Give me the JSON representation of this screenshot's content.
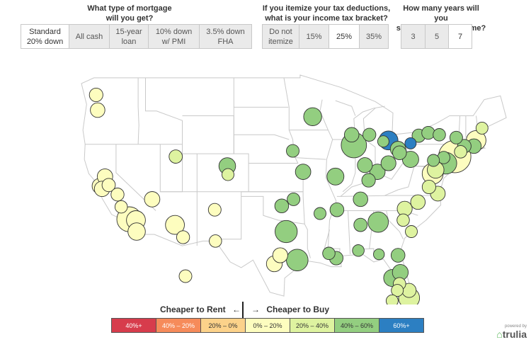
{
  "questions": {
    "mortgage": {
      "line1": "What type of mortgage",
      "line2": "will you get?",
      "options": [
        {
          "line1": "Standard",
          "line2": "20% down",
          "selected": true
        },
        {
          "line1": "All cash",
          "line2": "",
          "selected": false
        },
        {
          "line1": "15-year",
          "line2": "loan",
          "selected": false
        },
        {
          "line1": "10% down",
          "line2": "w/ PMI",
          "selected": false
        },
        {
          "line1": "3.5% down",
          "line2": "FHA",
          "selected": false
        }
      ]
    },
    "tax": {
      "line1": "If you itemize your tax deductions,",
      "line2": "what is your income tax bracket?",
      "options": [
        {
          "line1": "Do not",
          "line2": "itemize",
          "selected": false
        },
        {
          "line1": "15%",
          "line2": "",
          "selected": false
        },
        {
          "line1": "25%",
          "line2": "",
          "selected": true
        },
        {
          "line1": "35%",
          "line2": "",
          "selected": false
        }
      ]
    },
    "years": {
      "line1": "How many years will you",
      "line2": "stay in your next home?",
      "options": [
        {
          "line1": "3",
          "line2": "",
          "selected": false
        },
        {
          "line1": "5",
          "line2": "",
          "selected": false
        },
        {
          "line1": "7",
          "line2": "",
          "selected": true
        }
      ]
    }
  },
  "legend": {
    "left_label": "Cheaper to Rent",
    "left_arrow": "←",
    "right_arrow": "→",
    "right_label": "Cheaper to Buy",
    "categories": [
      {
        "label": "40%+",
        "color": "#d73c4c",
        "text_color": "#ffffff"
      },
      {
        "label": "40% – 20%",
        "color": "#f68b5a",
        "text_color": "#ffffff"
      },
      {
        "label": "20% – 0%",
        "color": "#fcd28a",
        "text_color": "#333333"
      },
      {
        "label": "0% – 20%",
        "color": "#fdfdbf",
        "text_color": "#333333"
      },
      {
        "label": "20% – 40%",
        "color": "#def3a0",
        "text_color": "#333333"
      },
      {
        "label": "40% – 60%",
        "color": "#93ce80",
        "text_color": "#333333"
      },
      {
        "label": "60%+",
        "color": "#2c7fc2",
        "text_color": "#ffffff"
      }
    ]
  },
  "brand": {
    "powered": "powered by",
    "name": "trulia"
  },
  "markers": [
    {
      "lon": -122.7,
      "lat": 47.2,
      "pop": 1.2,
      "cat": 3
    },
    {
      "lon": -122.5,
      "lat": 45.6,
      "pop": 1.6,
      "cat": 3
    },
    {
      "lon": -122.2,
      "lat": 37.6,
      "pop": 2.0,
      "cat": 3
    },
    {
      "lon": -121.5,
      "lat": 38.6,
      "pop": 2.0,
      "cat": 3
    },
    {
      "lon": -121.0,
      "lat": 37.7,
      "pop": 1.1,
      "cat": 3
    },
    {
      "lon": -121.9,
      "lat": 37.3,
      "pop": 2.0,
      "cat": 3
    },
    {
      "lon": -119.8,
      "lat": 36.7,
      "pop": 1.0,
      "cat": 3
    },
    {
      "lon": -118.2,
      "lat": 34.1,
      "pop": 9.0,
      "cat": 3
    },
    {
      "lon": -117.3,
      "lat": 34.0,
      "pop": 4.0,
      "cat": 3
    },
    {
      "lon": -117.2,
      "lat": 32.8,
      "pop": 3.0,
      "cat": 3
    },
    {
      "lon": -119.3,
      "lat": 35.4,
      "pop": 0.8,
      "cat": 3
    },
    {
      "lon": -115.1,
      "lat": 36.2,
      "pop": 2.0,
      "cat": 3
    },
    {
      "lon": -112.0,
      "lat": 33.5,
      "pop": 4.0,
      "cat": 3
    },
    {
      "lon": -110.9,
      "lat": 32.2,
      "pop": 1.0,
      "cat": 3
    },
    {
      "lon": -111.9,
      "lat": 40.7,
      "pop": 1.1,
      "cat": 4
    },
    {
      "lon": -104.9,
      "lat": 39.7,
      "pop": 2.6,
      "cat": 5
    },
    {
      "lon": -104.8,
      "lat": 38.8,
      "pop": 0.7,
      "cat": 4
    },
    {
      "lon": -106.6,
      "lat": 35.1,
      "pop": 0.9,
      "cat": 3
    },
    {
      "lon": -106.5,
      "lat": 31.8,
      "pop": 0.8,
      "cat": 3
    },
    {
      "lon": -96.9,
      "lat": 32.8,
      "pop": 6.5,
      "cat": 5
    },
    {
      "lon": -95.4,
      "lat": 29.8,
      "pop": 6.0,
      "cat": 5
    },
    {
      "lon": -97.7,
      "lat": 30.3,
      "pop": 1.8,
      "cat": 3
    },
    {
      "lon": -98.5,
      "lat": 29.4,
      "pop": 2.2,
      "cat": 3
    },
    {
      "lon": -95.9,
      "lat": 36.2,
      "pop": 0.9,
      "cat": 5
    },
    {
      "lon": -97.5,
      "lat": 35.5,
      "pop": 1.3,
      "cat": 5
    },
    {
      "lon": -94.6,
      "lat": 39.1,
      "pop": 2.0,
      "cat": 5
    },
    {
      "lon": -96.0,
      "lat": 41.3,
      "pop": 0.9,
      "cat": 5
    },
    {
      "lon": -93.3,
      "lat": 44.9,
      "pop": 3.4,
      "cat": 5
    },
    {
      "lon": -90.2,
      "lat": 38.6,
      "pop": 2.8,
      "cat": 5
    },
    {
      "lon": -87.7,
      "lat": 41.9,
      "pop": 9.5,
      "cat": 5
    },
    {
      "lon": -88.0,
      "lat": 43.0,
      "pop": 1.6,
      "cat": 5
    },
    {
      "lon": -86.2,
      "lat": 39.8,
      "pop": 1.8,
      "cat": 5
    },
    {
      "lon": -85.7,
      "lat": 38.2,
      "pop": 1.2,
      "cat": 5
    },
    {
      "lon": -84.5,
      "lat": 39.1,
      "pop": 2.0,
      "cat": 5
    },
    {
      "lon": -83.0,
      "lat": 40.0,
      "pop": 1.8,
      "cat": 5
    },
    {
      "lon": -83.0,
      "lat": 42.4,
      "pop": 4.0,
      "cat": 6
    },
    {
      "lon": -85.6,
      "lat": 43.0,
      "pop": 1.0,
      "cat": 5
    },
    {
      "lon": -81.7,
      "lat": 41.5,
      "pop": 2.0,
      "cat": 5
    },
    {
      "lon": -80.0,
      "lat": 40.4,
      "pop": 2.4,
      "cat": 5
    },
    {
      "lon": -86.8,
      "lat": 36.2,
      "pop": 1.6,
      "cat": 5
    },
    {
      "lon": -90.0,
      "lat": 35.1,
      "pop": 1.3,
      "cat": 5
    },
    {
      "lon": -86.8,
      "lat": 33.5,
      "pop": 1.1,
      "cat": 5
    },
    {
      "lon": -84.4,
      "lat": 33.8,
      "pop": 5.0,
      "cat": 5
    },
    {
      "lon": -92.3,
      "lat": 34.7,
      "pop": 0.7,
      "cat": 5
    },
    {
      "lon": -90.1,
      "lat": 30.0,
      "pop": 1.2,
      "cat": 5
    },
    {
      "lon": -91.1,
      "lat": 30.5,
      "pop": 0.8,
      "cat": 5
    },
    {
      "lon": -87.1,
      "lat": 30.8,
      "pop": 0.6,
      "cat": 5
    },
    {
      "lon": -84.3,
      "lat": 30.4,
      "pop": 0.4,
      "cat": 5
    },
    {
      "lon": -81.7,
      "lat": 30.3,
      "pop": 1.3,
      "cat": 5
    },
    {
      "lon": -81.4,
      "lat": 28.5,
      "pop": 2.2,
      "cat": 5
    },
    {
      "lon": -82.5,
      "lat": 27.9,
      "pop": 2.8,
      "cat": 5
    },
    {
      "lon": -81.5,
      "lat": 27.3,
      "pop": 0.8,
      "cat": 4
    },
    {
      "lon": -80.2,
      "lat": 26.6,
      "pop": 1.4,
      "cat": 4
    },
    {
      "lon": -80.2,
      "lat": 25.8,
      "pop": 5.5,
      "cat": 4
    },
    {
      "lon": -81.8,
      "lat": 26.6,
      "pop": 0.7,
      "cat": 4
    },
    {
      "lon": -82.5,
      "lat": 25.5,
      "pop": 0.7,
      "cat": 4
    },
    {
      "lon": -80.8,
      "lat": 35.2,
      "pop": 1.8,
      "cat": 4
    },
    {
      "lon": -79.0,
      "lat": 35.9,
      "pop": 1.6,
      "cat": 4
    },
    {
      "lon": -81.0,
      "lat": 34.0,
      "pop": 0.8,
      "cat": 4
    },
    {
      "lon": -79.9,
      "lat": 32.8,
      "pop": 0.7,
      "cat": 4
    },
    {
      "lon": -77.5,
      "lat": 37.5,
      "pop": 1.2,
      "cat": 4
    },
    {
      "lon": -76.3,
      "lat": 36.8,
      "pop": 1.7,
      "cat": 4
    },
    {
      "lon": -77.0,
      "lat": 38.9,
      "pop": 5.5,
      "cat": 3
    },
    {
      "lon": -76.6,
      "lat": 39.3,
      "pop": 2.6,
      "cat": 4
    },
    {
      "lon": -75.2,
      "lat": 40.0,
      "pop": 6.0,
      "cat": 5
    },
    {
      "lon": -74.0,
      "lat": 40.7,
      "pop": 18.0,
      "cat": 3
    },
    {
      "lon": -77.6,
      "lat": 43.2,
      "pop": 1.0,
      "cat": 5
    },
    {
      "lon": -76.1,
      "lat": 43.0,
      "pop": 0.8,
      "cat": 5
    },
    {
      "lon": -73.8,
      "lat": 42.7,
      "pop": 0.9,
      "cat": 5
    },
    {
      "lon": -78.9,
      "lat": 42.9,
      "pop": 1.1,
      "cat": 5
    },
    {
      "lon": -72.7,
      "lat": 41.8,
      "pop": 1.2,
      "cat": 5
    },
    {
      "lon": -71.4,
      "lat": 41.8,
      "pop": 1.6,
      "cat": 5
    },
    {
      "lon": -71.1,
      "lat": 42.4,
      "pop": 4.5,
      "cat": 3
    },
    {
      "lon": -80.0,
      "lat": 42.1,
      "pop": 0.5,
      "cat": 6
    },
    {
      "lon": -83.7,
      "lat": 42.3,
      "pop": 0.5,
      "cat": 5
    },
    {
      "lon": -81.5,
      "lat": 41.1,
      "pop": 1.3,
      "cat": 5
    },
    {
      "lon": -75.5,
      "lat": 40.6,
      "pop": 0.8,
      "cat": 5
    },
    {
      "lon": -76.9,
      "lat": 40.3,
      "pop": 0.7,
      "cat": 5
    },
    {
      "lon": -73.2,
      "lat": 41.2,
      "pop": 0.8,
      "cat": 4
    },
    {
      "lon": -70.3,
      "lat": 43.7,
      "pop": 0.7,
      "cat": 4
    },
    {
      "lon": -157.9,
      "lat": 21.3,
      "pop": 0.9,
      "cat": 3
    }
  ]
}
